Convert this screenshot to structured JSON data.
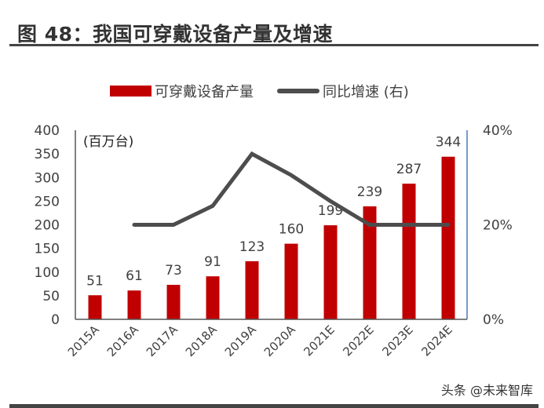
{
  "figure": {
    "title": "图 48：我国可穿戴设备产量及增速",
    "watermark": "头条 @未来智库"
  },
  "colors": {
    "bar": "#c00000",
    "line": "#4d4d4d",
    "text": "#404040",
    "right_axis": "#4a7ab5"
  },
  "chart_data": {
    "type": "bar",
    "title": "我国可穿戴设备产量及增速",
    "unit_label": "(百万台)",
    "categories": [
      "2015A",
      "2016A",
      "2017A",
      "2018A",
      "2019A",
      "2020A",
      "2021E",
      "2022E",
      "2023E",
      "2024E"
    ],
    "series": [
      {
        "name": "可穿戴设备产量",
        "type": "bar",
        "axis": "left",
        "values": [
          51,
          61,
          73,
          91,
          123,
          160,
          199,
          239,
          287,
          344
        ],
        "labels": [
          "51",
          "61",
          "73",
          "91",
          "123",
          "160",
          "199",
          "239",
          "287",
          "344"
        ]
      },
      {
        "name": "同比增速 (右)",
        "type": "line",
        "axis": "right",
        "values": [
          null,
          20,
          20,
          24,
          35,
          30.5,
          25,
          20,
          20,
          20
        ]
      }
    ],
    "left_axis": {
      "ylim": [
        0,
        400
      ],
      "ticks": [
        "0",
        "50",
        "100",
        "150",
        "200",
        "250",
        "300",
        "350",
        "400"
      ],
      "tick_values": [
        0,
        50,
        100,
        150,
        200,
        250,
        300,
        350,
        400
      ]
    },
    "right_axis": {
      "ylim": [
        0,
        40
      ],
      "ticks": [
        "0%",
        "20%",
        "40%"
      ],
      "tick_values": [
        0,
        20,
        40
      ]
    },
    "xlabel": "",
    "ylabel": "",
    "grid": false,
    "legend": "top-center"
  }
}
